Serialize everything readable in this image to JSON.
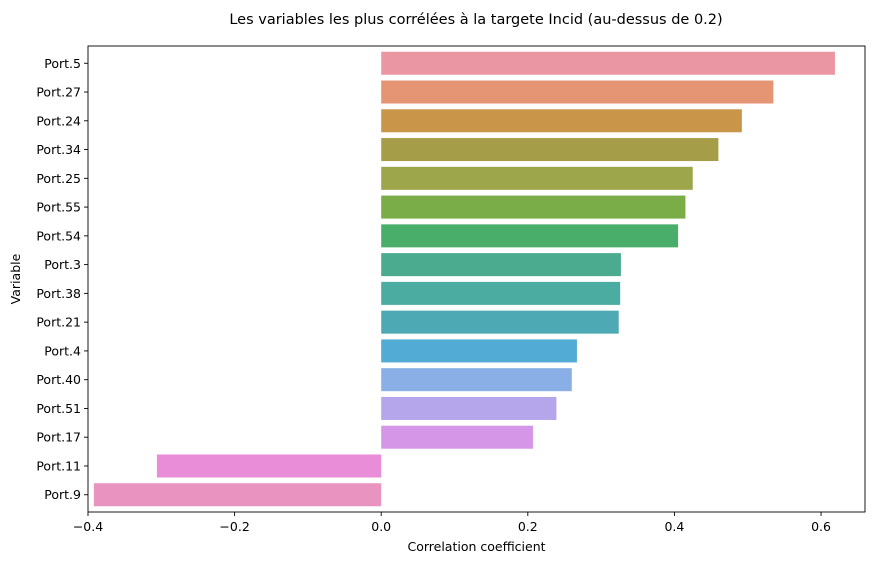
{
  "chart_data": {
    "type": "bar",
    "orientation": "horizontal",
    "title": "Les variables les plus corrélées à la targete Incid (au-dessus de 0.2)",
    "xlabel": "Correlation coefficient",
    "ylabel": "Variable",
    "xlim": [
      -0.4,
      0.66
    ],
    "xticks": [
      -0.4,
      -0.2,
      0.0,
      0.2,
      0.4,
      0.6
    ],
    "xtick_labels": [
      "−0.4",
      "−0.2",
      "0.0",
      "0.2",
      "0.4",
      "0.6"
    ],
    "grid": false,
    "categories": [
      "Port.5",
      "Port.27",
      "Port.24",
      "Port.34",
      "Port.25",
      "Port.55",
      "Port.54",
      "Port.3",
      "Port.38",
      "Port.21",
      "Port.4",
      "Port.40",
      "Port.51",
      "Port.17",
      "Port.11",
      "Port.9"
    ],
    "values": [
      0.619,
      0.535,
      0.492,
      0.46,
      0.425,
      0.415,
      0.405,
      0.327,
      0.326,
      0.324,
      0.267,
      0.26,
      0.239,
      0.207,
      -0.306,
      -0.392
    ],
    "colors": [
      "#ea96a3",
      "#e59573",
      "#c99649",
      "#a69d49",
      "#9da64a",
      "#7aac48",
      "#48ae6a",
      "#4aab8e",
      "#4baca2",
      "#4daab5",
      "#51abd4",
      "#8aaee6",
      "#b5a5ea",
      "#d596e8",
      "#e98dd9",
      "#e994c0"
    ]
  }
}
